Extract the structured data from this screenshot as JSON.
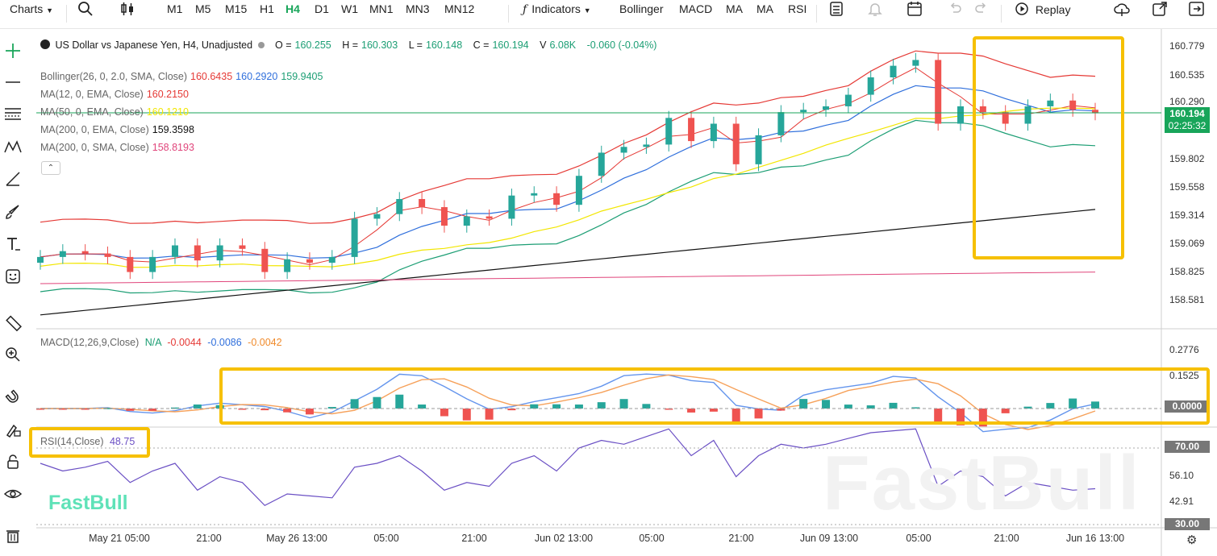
{
  "toolbar": {
    "charts_label": "Charts",
    "timeframes": [
      "M1",
      "M5",
      "M15",
      "H1",
      "H4",
      "D1",
      "W1",
      "MN1",
      "MN3",
      "MN12"
    ],
    "active_timeframe": "H4",
    "indicators_label": "Indicators",
    "indicator_shortcuts": [
      "Bollinger",
      "MACD",
      "MA",
      "MA",
      "RSI"
    ],
    "replay_label": "Replay"
  },
  "legend": {
    "title": "US Dollar vs Japanese Yen, H4, Unadjusted",
    "ohlc": {
      "o_label": "O =",
      "o": "160.255",
      "h_label": "H =",
      "h": "160.303",
      "l_label": "L =",
      "l": "160.148",
      "c_label": "C =",
      "c": "160.194",
      "v_label": "V",
      "v": "6.08K",
      "change": "-0.060 (-0.04%)"
    },
    "indicators": [
      {
        "label": "Bollinger(26, 0, 2.0, SMA, Close)",
        "values": [
          "160.6435",
          "160.2920",
          "159.9405"
        ],
        "colors": [
          "#e53935",
          "#2f6fdc",
          "#1c9e74"
        ]
      },
      {
        "label": "MA(12, 0, EMA, Close)",
        "values": [
          "160.2150"
        ],
        "colors": [
          "#e53935"
        ]
      },
      {
        "label": "MA(50, 0, EMA, Close)",
        "values": [
          "160.1210"
        ],
        "colors": [
          "#f2e600"
        ]
      },
      {
        "label": "MA(200, 0, EMA, Close)",
        "values": [
          "159.3598"
        ],
        "colors": [
          "#111111"
        ]
      },
      {
        "label": "MA(200, 0, SMA, Close)",
        "values": [
          "158.8193"
        ],
        "colors": [
          "#e0457b"
        ]
      }
    ],
    "macd_label": "MACD(12,26,9,Close)",
    "macd_values": [
      "N/A",
      "-0.0044",
      "-0.0086",
      "-0.0042"
    ],
    "rsi_label": "RSI(14,Close)",
    "rsi_value": "48.75"
  },
  "price_tag": {
    "price": "160.194",
    "countdown": "02:25:32"
  },
  "colors": {
    "up": "#26a69a",
    "down": "#ef5350",
    "accent": "#18a55a",
    "highlight": "#f6c000",
    "macd": "#6495ed",
    "signal": "#f6a15a",
    "rsi": "#6a4fc4"
  },
  "watermark": "FastBull",
  "chart_data": {
    "type": "candlestick",
    "title": "US Dollar vs Japanese Yen, H4, Unadjusted",
    "price_axis": [
      "160.779",
      "160.535",
      "160.290",
      "159.802",
      "159.558",
      "159.314",
      "159.069",
      "158.825",
      "158.581"
    ],
    "x_labels": [
      "May 21 05:00",
      "21:00",
      "May 26 13:00",
      "05:00",
      "21:00",
      "Jun 02 13:00",
      "05:00",
      "21:00",
      "Jun 09 13:00",
      "05:00",
      "21:00",
      "Jun 16 13:00"
    ],
    "close_series_approx": [
      158.95,
      159.0,
      158.98,
      158.95,
      158.82,
      158.95,
      159.05,
      158.92,
      159.05,
      159.02,
      158.82,
      158.93,
      158.9,
      158.95,
      159.28,
      159.32,
      159.45,
      159.38,
      159.22,
      159.3,
      159.28,
      159.48,
      159.5,
      159.4,
      159.65,
      159.85,
      159.9,
      159.92,
      160.15,
      159.95,
      160.1,
      159.75,
      160.0,
      160.2,
      160.22,
      160.25,
      160.35,
      160.5,
      160.6,
      160.65,
      160.1,
      160.25,
      160.2,
      160.1,
      160.25,
      160.3,
      160.22,
      160.19
    ],
    "macd": {
      "axis": [
        "0.2776",
        "0.1525",
        "0.0000"
      ],
      "values": [
        "N/A",
        "-0.0044",
        "-0.0086",
        "-0.0042"
      ]
    },
    "rsi": {
      "axis": [
        "70.00",
        "56.10",
        "42.91",
        "30.00"
      ],
      "value": 48.75,
      "series_approx": [
        62,
        58,
        60,
        63,
        52,
        58,
        62,
        48,
        55,
        52,
        40,
        46,
        45,
        44,
        60,
        62,
        66,
        58,
        48,
        52,
        50,
        62,
        66,
        58,
        70,
        74,
        72,
        76,
        80,
        66,
        74,
        55,
        66,
        72,
        70,
        72,
        75,
        78,
        79,
        80,
        50,
        58,
        55,
        45,
        52,
        50,
        48,
        48.75
      ]
    }
  }
}
